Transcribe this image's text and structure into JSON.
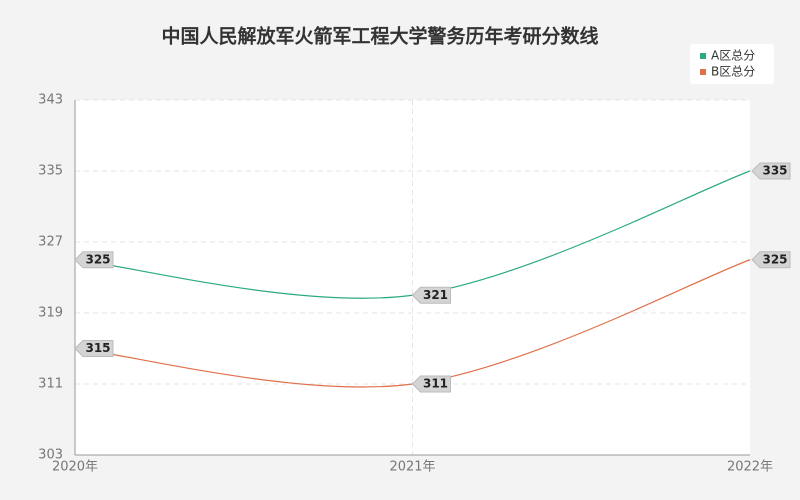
{
  "chart_data": {
    "type": "line",
    "title": "中国人民解放军火箭军工程大学警务历年考研分数线",
    "categories": [
      "2020年",
      "2021年",
      "2022年"
    ],
    "series": [
      {
        "name": "A区总分",
        "color": "#2baa80",
        "values": [
          325,
          321,
          335
        ]
      },
      {
        "name": "B区总分",
        "color": "#e0714b",
        "values": [
          315,
          311,
          325
        ]
      }
    ],
    "ylim": [
      303,
      343
    ],
    "yticks": [
      303,
      311,
      319,
      327,
      335,
      343
    ],
    "grid": true,
    "legend": "top-right"
  }
}
